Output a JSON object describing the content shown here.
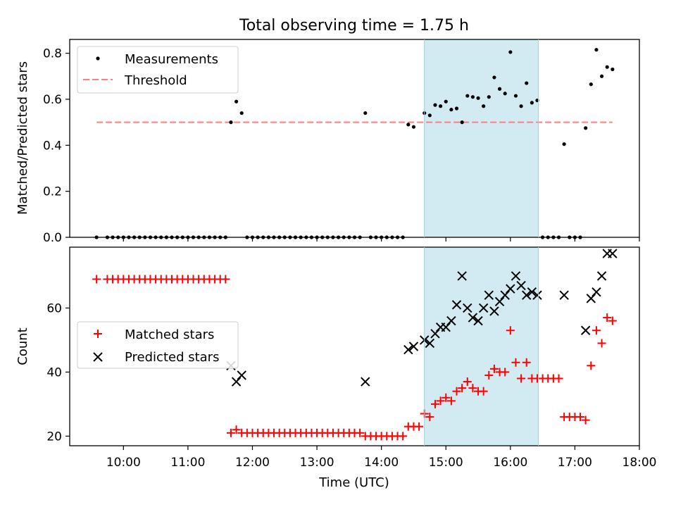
{
  "chart_data": [
    {
      "type": "scatter",
      "title": "Total observing time = 1.75 h",
      "xlabel": "",
      "ylabel": "Matched/Predicted stars",
      "xlim": [
        "09:10",
        "18:00"
      ],
      "ylim": [
        0,
        0.86
      ],
      "yticks": [
        "0.0",
        "0.2",
        "0.4",
        "0.6",
        "0.8"
      ],
      "shaded_interval": {
        "start": "14:40",
        "end": "16:26",
        "color": "#add8e6"
      },
      "legend_position": "upper left",
      "series": [
        {
          "name": "Measurements",
          "color": "#000000",
          "marker": "dot",
          "points": [
            [
              "09:35",
              0
            ],
            [
              "09:45",
              0
            ],
            [
              "09:50",
              0
            ],
            [
              "09:55",
              0
            ],
            [
              "10:00",
              0
            ],
            [
              "10:05",
              0
            ],
            [
              "10:10",
              0
            ],
            [
              "10:15",
              0
            ],
            [
              "10:20",
              0
            ],
            [
              "10:25",
              0
            ],
            [
              "10:30",
              0
            ],
            [
              "10:35",
              0
            ],
            [
              "10:40",
              0
            ],
            [
              "10:45",
              0
            ],
            [
              "10:50",
              0
            ],
            [
              "10:55",
              0
            ],
            [
              "11:00",
              0
            ],
            [
              "11:05",
              0
            ],
            [
              "11:10",
              0
            ],
            [
              "11:15",
              0
            ],
            [
              "11:20",
              0
            ],
            [
              "11:25",
              0
            ],
            [
              "11:30",
              0
            ],
            [
              "11:35",
              0
            ],
            [
              "11:40",
              0.5
            ],
            [
              "11:45",
              0.59
            ],
            [
              "11:50",
              0.54
            ],
            [
              "11:55",
              0
            ],
            [
              "12:00",
              0
            ],
            [
              "12:05",
              0
            ],
            [
              "12:10",
              0
            ],
            [
              "12:15",
              0
            ],
            [
              "12:20",
              0
            ],
            [
              "12:25",
              0
            ],
            [
              "12:30",
              0
            ],
            [
              "12:35",
              0
            ],
            [
              "12:40",
              0
            ],
            [
              "12:45",
              0
            ],
            [
              "12:50",
              0
            ],
            [
              "12:55",
              0
            ],
            [
              "13:00",
              0
            ],
            [
              "13:05",
              0
            ],
            [
              "13:10",
              0
            ],
            [
              "13:15",
              0
            ],
            [
              "13:20",
              0
            ],
            [
              "13:25",
              0
            ],
            [
              "13:30",
              0
            ],
            [
              "13:35",
              0
            ],
            [
              "13:40",
              0
            ],
            [
              "13:45",
              0.54
            ],
            [
              "13:50",
              0
            ],
            [
              "13:55",
              0
            ],
            [
              "14:00",
              0
            ],
            [
              "14:05",
              0
            ],
            [
              "14:10",
              0
            ],
            [
              "14:15",
              0
            ],
            [
              "14:20",
              0
            ],
            [
              "14:25",
              0.49
            ],
            [
              "14:30",
              0.48
            ],
            [
              "14:40",
              0.54
            ],
            [
              "14:45",
              0.53
            ],
            [
              "14:50",
              0.575
            ],
            [
              "14:55",
              0.57
            ],
            [
              "15:00",
              0.59
            ],
            [
              "15:05",
              0.555
            ],
            [
              "15:10",
              0.56
            ],
            [
              "15:15",
              0.5
            ],
            [
              "15:20",
              0.615
            ],
            [
              "15:25",
              0.61
            ],
            [
              "15:30",
              0.605
            ],
            [
              "15:35",
              0.57
            ],
            [
              "15:40",
              0.61
            ],
            [
              "15:45",
              0.695
            ],
            [
              "15:50",
              0.645
            ],
            [
              "15:55",
              0.625
            ],
            [
              "16:00",
              0.805
            ],
            [
              "16:05",
              0.615
            ],
            [
              "16:10",
              0.57
            ],
            [
              "16:15",
              0.67
            ],
            [
              "16:20",
              0.585
            ],
            [
              "16:25",
              0.595
            ],
            [
              "16:30",
              0
            ],
            [
              "16:35",
              0
            ],
            [
              "16:40",
              0
            ],
            [
              "16:45",
              0
            ],
            [
              "16:50",
              0.405
            ],
            [
              "16:55",
              0
            ],
            [
              "17:00",
              0
            ],
            [
              "17:05",
              0
            ],
            [
              "17:10",
              0.475
            ],
            [
              "17:15",
              0.665
            ],
            [
              "17:20",
              0.815
            ],
            [
              "17:25",
              0.7
            ],
            [
              "17:30",
              0.74
            ],
            [
              "17:35",
              0.73
            ]
          ]
        },
        {
          "name": "Threshold",
          "color": "#ff7f7f",
          "style": "dashed",
          "points": [
            [
              "09:35",
              0.5
            ],
            [
              "17:35",
              0.5
            ]
          ]
        }
      ]
    },
    {
      "type": "scatter",
      "title": "",
      "xlabel": "Time (UTC)",
      "ylabel": "Count",
      "xlim": [
        "09:10",
        "18:00"
      ],
      "ylim": [
        17,
        79
      ],
      "xticks": [
        "10:00",
        "11:00",
        "12:00",
        "13:00",
        "14:00",
        "15:00",
        "16:00",
        "17:00",
        "18:00"
      ],
      "yticks": [
        "20",
        "40",
        "60"
      ],
      "shaded_interval": {
        "start": "14:40",
        "end": "16:26",
        "color": "#add8e6"
      },
      "legend_position": "center left",
      "series": [
        {
          "name": "Matched stars",
          "color": "#ff0000",
          "marker": "plus",
          "points": [
            [
              "09:35",
              69
            ],
            [
              "09:45",
              69
            ],
            [
              "09:50",
              69
            ],
            [
              "09:55",
              69
            ],
            [
              "10:00",
              69
            ],
            [
              "10:05",
              69
            ],
            [
              "10:10",
              69
            ],
            [
              "10:15",
              69
            ],
            [
              "10:20",
              69
            ],
            [
              "10:25",
              69
            ],
            [
              "10:30",
              69
            ],
            [
              "10:35",
              69
            ],
            [
              "10:40",
              69
            ],
            [
              "10:45",
              69
            ],
            [
              "10:50",
              69
            ],
            [
              "10:55",
              69
            ],
            [
              "11:00",
              69
            ],
            [
              "11:05",
              69
            ],
            [
              "11:10",
              69
            ],
            [
              "11:15",
              69
            ],
            [
              "11:20",
              69
            ],
            [
              "11:25",
              69
            ],
            [
              "11:30",
              69
            ],
            [
              "11:35",
              69
            ],
            [
              "11:40",
              21
            ],
            [
              "11:45",
              22
            ],
            [
              "11:50",
              21
            ],
            [
              "11:55",
              21
            ],
            [
              "12:00",
              21
            ],
            [
              "12:05",
              21
            ],
            [
              "12:10",
              21
            ],
            [
              "12:15",
              21
            ],
            [
              "12:20",
              21
            ],
            [
              "12:25",
              21
            ],
            [
              "12:30",
              21
            ],
            [
              "12:35",
              21
            ],
            [
              "12:40",
              21
            ],
            [
              "12:45",
              21
            ],
            [
              "12:50",
              21
            ],
            [
              "12:55",
              21
            ],
            [
              "13:00",
              21
            ],
            [
              "13:05",
              21
            ],
            [
              "13:10",
              21
            ],
            [
              "13:15",
              21
            ],
            [
              "13:20",
              21
            ],
            [
              "13:25",
              21
            ],
            [
              "13:30",
              21
            ],
            [
              "13:35",
              21
            ],
            [
              "13:40",
              21
            ],
            [
              "13:45",
              20
            ],
            [
              "13:50",
              20
            ],
            [
              "13:55",
              20
            ],
            [
              "14:00",
              20
            ],
            [
              "14:05",
              20
            ],
            [
              "14:10",
              20
            ],
            [
              "14:15",
              20
            ],
            [
              "14:20",
              20
            ],
            [
              "14:25",
              23
            ],
            [
              "14:30",
              23
            ],
            [
              "14:35",
              23
            ],
            [
              "14:40",
              27
            ],
            [
              "14:45",
              26
            ],
            [
              "14:50",
              30
            ],
            [
              "14:55",
              31
            ],
            [
              "15:00",
              32
            ],
            [
              "15:05",
              31
            ],
            [
              "15:10",
              34
            ],
            [
              "15:15",
              35
            ],
            [
              "15:20",
              37
            ],
            [
              "15:25",
              35
            ],
            [
              "15:30",
              34
            ],
            [
              "15:35",
              34
            ],
            [
              "15:40",
              39
            ],
            [
              "15:45",
              41
            ],
            [
              "15:50",
              40
            ],
            [
              "15:55",
              40
            ],
            [
              "16:00",
              53
            ],
            [
              "16:05",
              43
            ],
            [
              "16:10",
              38
            ],
            [
              "16:15",
              43
            ],
            [
              "16:20",
              38
            ],
            [
              "16:25",
              38
            ],
            [
              "16:30",
              38
            ],
            [
              "16:35",
              38
            ],
            [
              "16:40",
              38
            ],
            [
              "16:45",
              38
            ],
            [
              "16:50",
              26
            ],
            [
              "16:55",
              26
            ],
            [
              "17:00",
              26
            ],
            [
              "17:05",
              26
            ],
            [
              "17:10",
              25
            ],
            [
              "17:15",
              42
            ],
            [
              "17:20",
              53
            ],
            [
              "17:25",
              49
            ],
            [
              "17:30",
              57
            ],
            [
              "17:35",
              56
            ]
          ]
        },
        {
          "name": "Predicted stars",
          "color": "#000000",
          "marker": "x",
          "points": [
            [
              "11:40",
              42
            ],
            [
              "11:45",
              37
            ],
            [
              "11:50",
              39
            ],
            [
              "13:45",
              37
            ],
            [
              "14:25",
              47
            ],
            [
              "14:30",
              48
            ],
            [
              "14:40",
              50
            ],
            [
              "14:45",
              49
            ],
            [
              "14:50",
              52
            ],
            [
              "14:55",
              54
            ],
            [
              "15:00",
              54
            ],
            [
              "15:05",
              56
            ],
            [
              "15:10",
              61
            ],
            [
              "15:15",
              70
            ],
            [
              "15:20",
              60
            ],
            [
              "15:25",
              57
            ],
            [
              "15:30",
              56
            ],
            [
              "15:35",
              60
            ],
            [
              "15:40",
              64
            ],
            [
              "15:45",
              59
            ],
            [
              "15:50",
              62
            ],
            [
              "15:55",
              64
            ],
            [
              "16:00",
              66
            ],
            [
              "16:05",
              70
            ],
            [
              "16:10",
              67
            ],
            [
              "16:15",
              64
            ],
            [
              "16:20",
              65
            ],
            [
              "16:25",
              64
            ],
            [
              "16:50",
              64
            ],
            [
              "17:10",
              53
            ],
            [
              "17:15",
              63
            ],
            [
              "17:20",
              65
            ],
            [
              "17:25",
              70
            ],
            [
              "17:30",
              77
            ],
            [
              "17:35",
              77
            ]
          ]
        }
      ]
    }
  ]
}
